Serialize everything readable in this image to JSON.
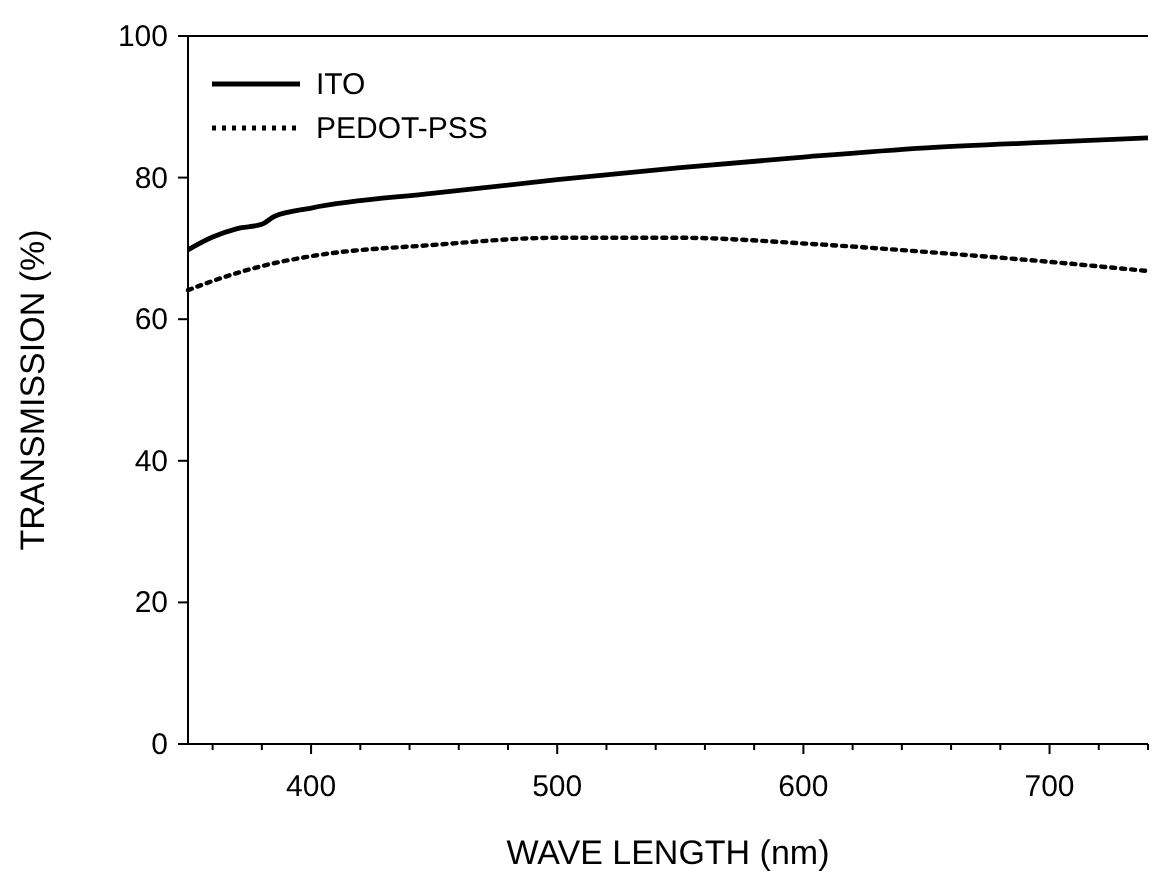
{
  "chart_data": {
    "type": "line",
    "xlabel": "WAVE LENGTH (nm)",
    "ylabel": "TRANSMISSION (%)",
    "xlim": [
      350,
      740
    ],
    "xticks": [
      {
        "value": 360,
        "label": null
      },
      {
        "value": 380,
        "label": null
      },
      400,
      {
        "value": 420,
        "label": null
      },
      {
        "value": 440,
        "label": null
      },
      {
        "value": 460,
        "label": null
      },
      {
        "value": 480,
        "label": null
      },
      500,
      {
        "value": 520,
        "label": null
      },
      {
        "value": 540,
        "label": null
      },
      {
        "value": 560,
        "label": null
      },
      {
        "value": 580,
        "label": null
      },
      600,
      {
        "value": 620,
        "label": null
      },
      {
        "value": 640,
        "label": null
      },
      {
        "value": 660,
        "label": null
      },
      {
        "value": 680,
        "label": null
      },
      700,
      {
        "value": 720,
        "label": null
      },
      {
        "value": 740,
        "label": null
      }
    ],
    "ylim": [
      0,
      100
    ],
    "yticks": [
      0,
      20,
      40,
      60,
      80,
      100
    ],
    "grid": false,
    "legend": "top left",
    "marker": "none",
    "series": [
      {
        "name": "ITO",
        "color": "#000000",
        "line_style": "solid",
        "x": [
          350,
          360,
          370,
          380,
          385,
          400,
          450,
          500,
          550,
          600,
          650,
          700,
          740
        ],
        "values": [
          69.8,
          71.6,
          72.8,
          73.4,
          74.5,
          75.7,
          77.8,
          79.7,
          81.4,
          82.9,
          84.2,
          85,
          85.6
        ]
      },
      {
        "name": "PEDOT-PSS",
        "color": "#000000",
        "line_style": "dotted",
        "x": [
          350,
          360,
          380,
          400,
          450,
          500,
          550,
          600,
          650,
          700,
          740
        ],
        "values": [
          64.1,
          65.4,
          67.5,
          68.9,
          70.5,
          71.5,
          71.5,
          70.7,
          69.5,
          68.1,
          66.8
        ]
      }
    ]
  }
}
